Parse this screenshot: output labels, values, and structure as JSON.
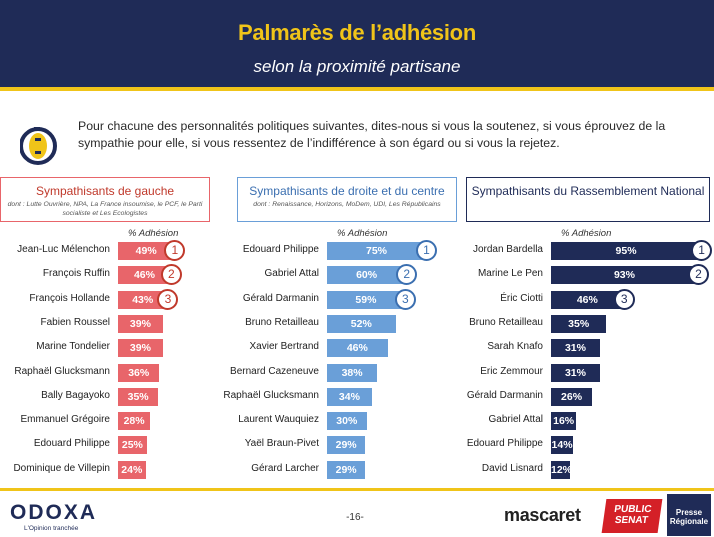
{
  "header": {
    "title": "Palmarès de l’adhésion",
    "subtitle": "selon la proximité partisane"
  },
  "question": "Pour chacune des personnalités politiques suivantes, dites-nous si vous la soutenez, si vous éprouvez de la sympathie pour elle, si vous ressentez de l’indifférence à son égard ou si vous la rejetez.",
  "footer": {
    "logo": "ODOXA",
    "tagline": "L'Opinion tranchée",
    "page": "-16-",
    "partners": [
      "mascaret",
      "PUBLIC SENAT",
      "Presse Régionale"
    ]
  },
  "chart_data": [
    {
      "type": "bar",
      "title": "Sympathisants de gauche",
      "subtitle": "dont : Lutte Ouvrière, NPA, La France insoumise, le PCF, le Parti socialiste et Les Ecologistes",
      "ylabel": "% Adhésion",
      "color": "#e8656a",
      "categories": [
        "Jean-Luc Mélenchon",
        "François Ruffin",
        "François Hollande",
        "Fabien Roussel",
        "Marine Tondelier",
        "Raphaël Glucksmann",
        "Bally Bagayoko",
        "Emmanuel Grégoire",
        "Edouard Philippe",
        "Dominique de Villepin"
      ],
      "values": [
        49,
        46,
        43,
        39,
        39,
        36,
        35,
        28,
        25,
        24
      ],
      "ranks": [
        "1",
        "2",
        "3"
      ],
      "ylim": [
        0,
        100
      ]
    },
    {
      "type": "bar",
      "title": "Sympathisants de droite et du centre",
      "subtitle": "dont : Renaissance, Horizons, MoDem, UDI, Les Républicains",
      "ylabel": "% Adhésion",
      "color": "#6a9fd8",
      "categories": [
        "Edouard Philippe",
        "Gabriel Attal",
        "Gérald Darmanin",
        "Bruno Retailleau",
        "Xavier Bertrand",
        "Bernard Cazeneuve",
        "Raphaël Glucksmann",
        "Laurent Wauquiez",
        "Yaël Braun-Pivet",
        "Gérard Larcher"
      ],
      "values": [
        75,
        60,
        59,
        52,
        46,
        38,
        34,
        30,
        29,
        29
      ],
      "ranks": [
        "1",
        "2",
        "3"
      ],
      "ylim": [
        0,
        100
      ]
    },
    {
      "type": "bar",
      "title": "Sympathisants du Rassemblement National",
      "subtitle": "",
      "ylabel": "% Adhésion",
      "color": "#1f2b57",
      "categories": [
        "Jordan Bardella",
        "Marine Le Pen",
        "Éric Ciotti",
        "Bruno Retailleau",
        "Sarah Knafo",
        "Eric Zemmour",
        "Gérald Darmanin",
        "Gabriel Attal",
        "Edouard Philippe",
        "David Lisnard"
      ],
      "values": [
        95,
        93,
        46,
        35,
        31,
        31,
        26,
        16,
        14,
        12
      ],
      "ranks": [
        "1",
        "2",
        "3"
      ],
      "ylim": [
        0,
        100
      ]
    }
  ]
}
